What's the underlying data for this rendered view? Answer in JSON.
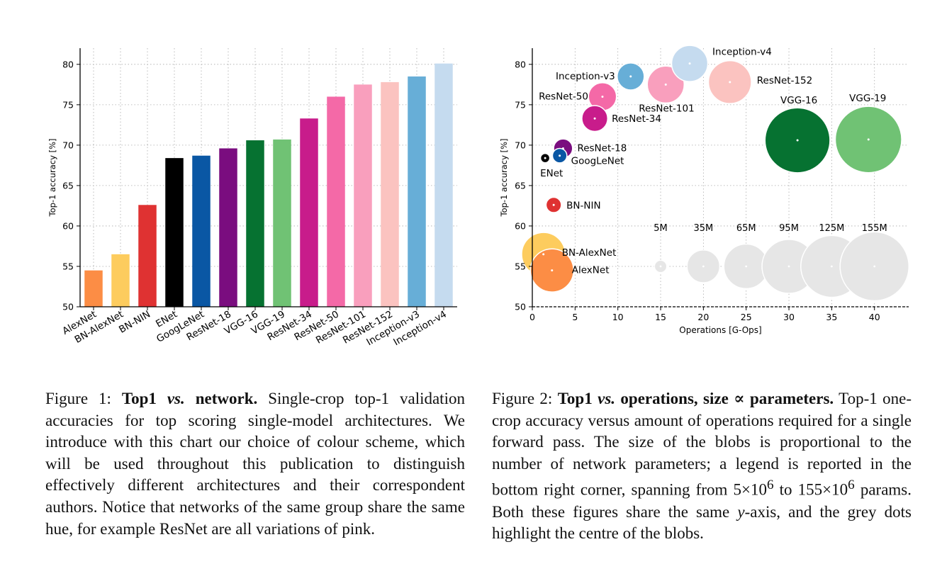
{
  "figure1": {
    "chart_data": {
      "type": "bar",
      "ylabel": "Top-1 accuracy [%]",
      "ylim": [
        50,
        82
      ],
      "yticks": [
        50,
        55,
        60,
        65,
        70,
        75,
        80
      ],
      "grid": true,
      "categories": [
        "AlexNet",
        "BN-AlexNet",
        "BN-NIN",
        "ENet",
        "GoogLeNet",
        "ResNet-18",
        "VGG-16",
        "VGG-19",
        "ResNet-34",
        "ResNet-50",
        "ResNet-101",
        "ResNet-152",
        "Inception-v3",
        "Inception-v4"
      ],
      "values": [
        54.5,
        56.5,
        62.6,
        68.4,
        68.7,
        69.6,
        70.6,
        70.7,
        73.3,
        76.0,
        77.5,
        77.8,
        78.5,
        80.1
      ],
      "colors": [
        "#fc8d45",
        "#fdcc5e",
        "#df3232",
        "#000000",
        "#0a57a4",
        "#7a0d7f",
        "#067231",
        "#70c274",
        "#c81c8b",
        "#f469a7",
        "#f99fbd",
        "#fbc3c0",
        "#67aed7",
        "#c5dbef"
      ]
    }
  },
  "figure2": {
    "chart_data": {
      "type": "scatter",
      "xlabel": "Operations [G-Ops]",
      "ylabel": "Top-1 accuracy [%]",
      "xlim": [
        0,
        44
      ],
      "ylim": [
        50,
        82
      ],
      "xticks": [
        0,
        5,
        10,
        15,
        20,
        25,
        30,
        35,
        40
      ],
      "yticks": [
        50,
        55,
        60,
        65,
        70,
        75,
        80
      ],
      "grid": true,
      "size_unit": "params (M)",
      "points": [
        {
          "label": "AlexNet",
          "x": 2.3,
          "y": 54.5,
          "params_m": 61,
          "color": "#fc8d45"
        },
        {
          "label": "BN-AlexNet",
          "x": 1.3,
          "y": 56.5,
          "params_m": 62,
          "color": "#fdcc5e"
        },
        {
          "label": "BN-NIN",
          "x": 2.5,
          "y": 62.6,
          "params_m": 7.6,
          "color": "#df3232"
        },
        {
          "label": "ENet",
          "x": 1.5,
          "y": 68.4,
          "params_m": 0.4,
          "color": "#000000"
        },
        {
          "label": "GoogLeNet",
          "x": 3.2,
          "y": 68.7,
          "params_m": 6.8,
          "color": "#0a57a4"
        },
        {
          "label": "ResNet-18",
          "x": 3.6,
          "y": 69.6,
          "params_m": 11.7,
          "color": "#7a0d7f"
        },
        {
          "label": "VGG-16",
          "x": 31,
          "y": 70.6,
          "params_m": 138,
          "color": "#067231"
        },
        {
          "label": "VGG-19",
          "x": 39.3,
          "y": 70.7,
          "params_m": 144,
          "color": "#70c274"
        },
        {
          "label": "ResNet-34",
          "x": 7.3,
          "y": 73.3,
          "params_m": 21.8,
          "color": "#c81c8b"
        },
        {
          "label": "ResNet-50",
          "x": 8.2,
          "y": 76.0,
          "params_m": 25.6,
          "color": "#f469a7"
        },
        {
          "label": "ResNet-101",
          "x": 15.6,
          "y": 77.5,
          "params_m": 44.5,
          "color": "#f99fbd"
        },
        {
          "label": "ResNet-152",
          "x": 23.1,
          "y": 77.8,
          "params_m": 60.2,
          "color": "#fbc3c0"
        },
        {
          "label": "Inception-v3",
          "x": 11.5,
          "y": 78.5,
          "params_m": 23.8,
          "color": "#67aed7"
        },
        {
          "label": "Inception-v4",
          "x": 18.4,
          "y": 80.1,
          "params_m": 42.7,
          "color": "#c5dbef"
        }
      ],
      "size_legend": {
        "color": "#e6e6e6",
        "y": 55,
        "items": [
          {
            "label": "5M",
            "x": 15,
            "params_m": 5
          },
          {
            "label": "35M",
            "x": 20,
            "params_m": 35
          },
          {
            "label": "65M",
            "x": 25,
            "params_m": 65
          },
          {
            "label": "95M",
            "x": 30,
            "params_m": 95
          },
          {
            "label": "125M",
            "x": 35,
            "params_m": 125
          },
          {
            "label": "155M",
            "x": 40,
            "params_m": 155
          }
        ]
      }
    }
  },
  "caption1": {
    "prefix": "Figure 1: ",
    "title": "Top1 ",
    "vs": "vs.",
    "title_end": " network.",
    "body": " Single-crop top-1 validation accuracies for top scoring single-model architectures. We introduce with this chart our choice of colour scheme, which will be used throughout this publication to distinguish effectively different architectures and their correspondent authors. Notice that networks of the same group share the same hue, for example ResNet are all variations of pink."
  },
  "caption2": {
    "prefix": "Figure 2: ",
    "title": "Top1 ",
    "vs": "vs.",
    "title_end": " operations, size ∝ parameters.",
    "body_a": " Top-1 one-crop accuracy versus amount of operations required for a single forward pass. The size of the blobs is proportional to the number of network parameters; a legend is reported in the bottom right corner, spanning from 5×10",
    "exp1": "6",
    "body_b": " to 155×10",
    "exp2": "6",
    "body_c": " params. Both these figures share the same ",
    "y_italic": "y",
    "body_d": "-axis, and the grey dots highlight the centre of the blobs."
  }
}
